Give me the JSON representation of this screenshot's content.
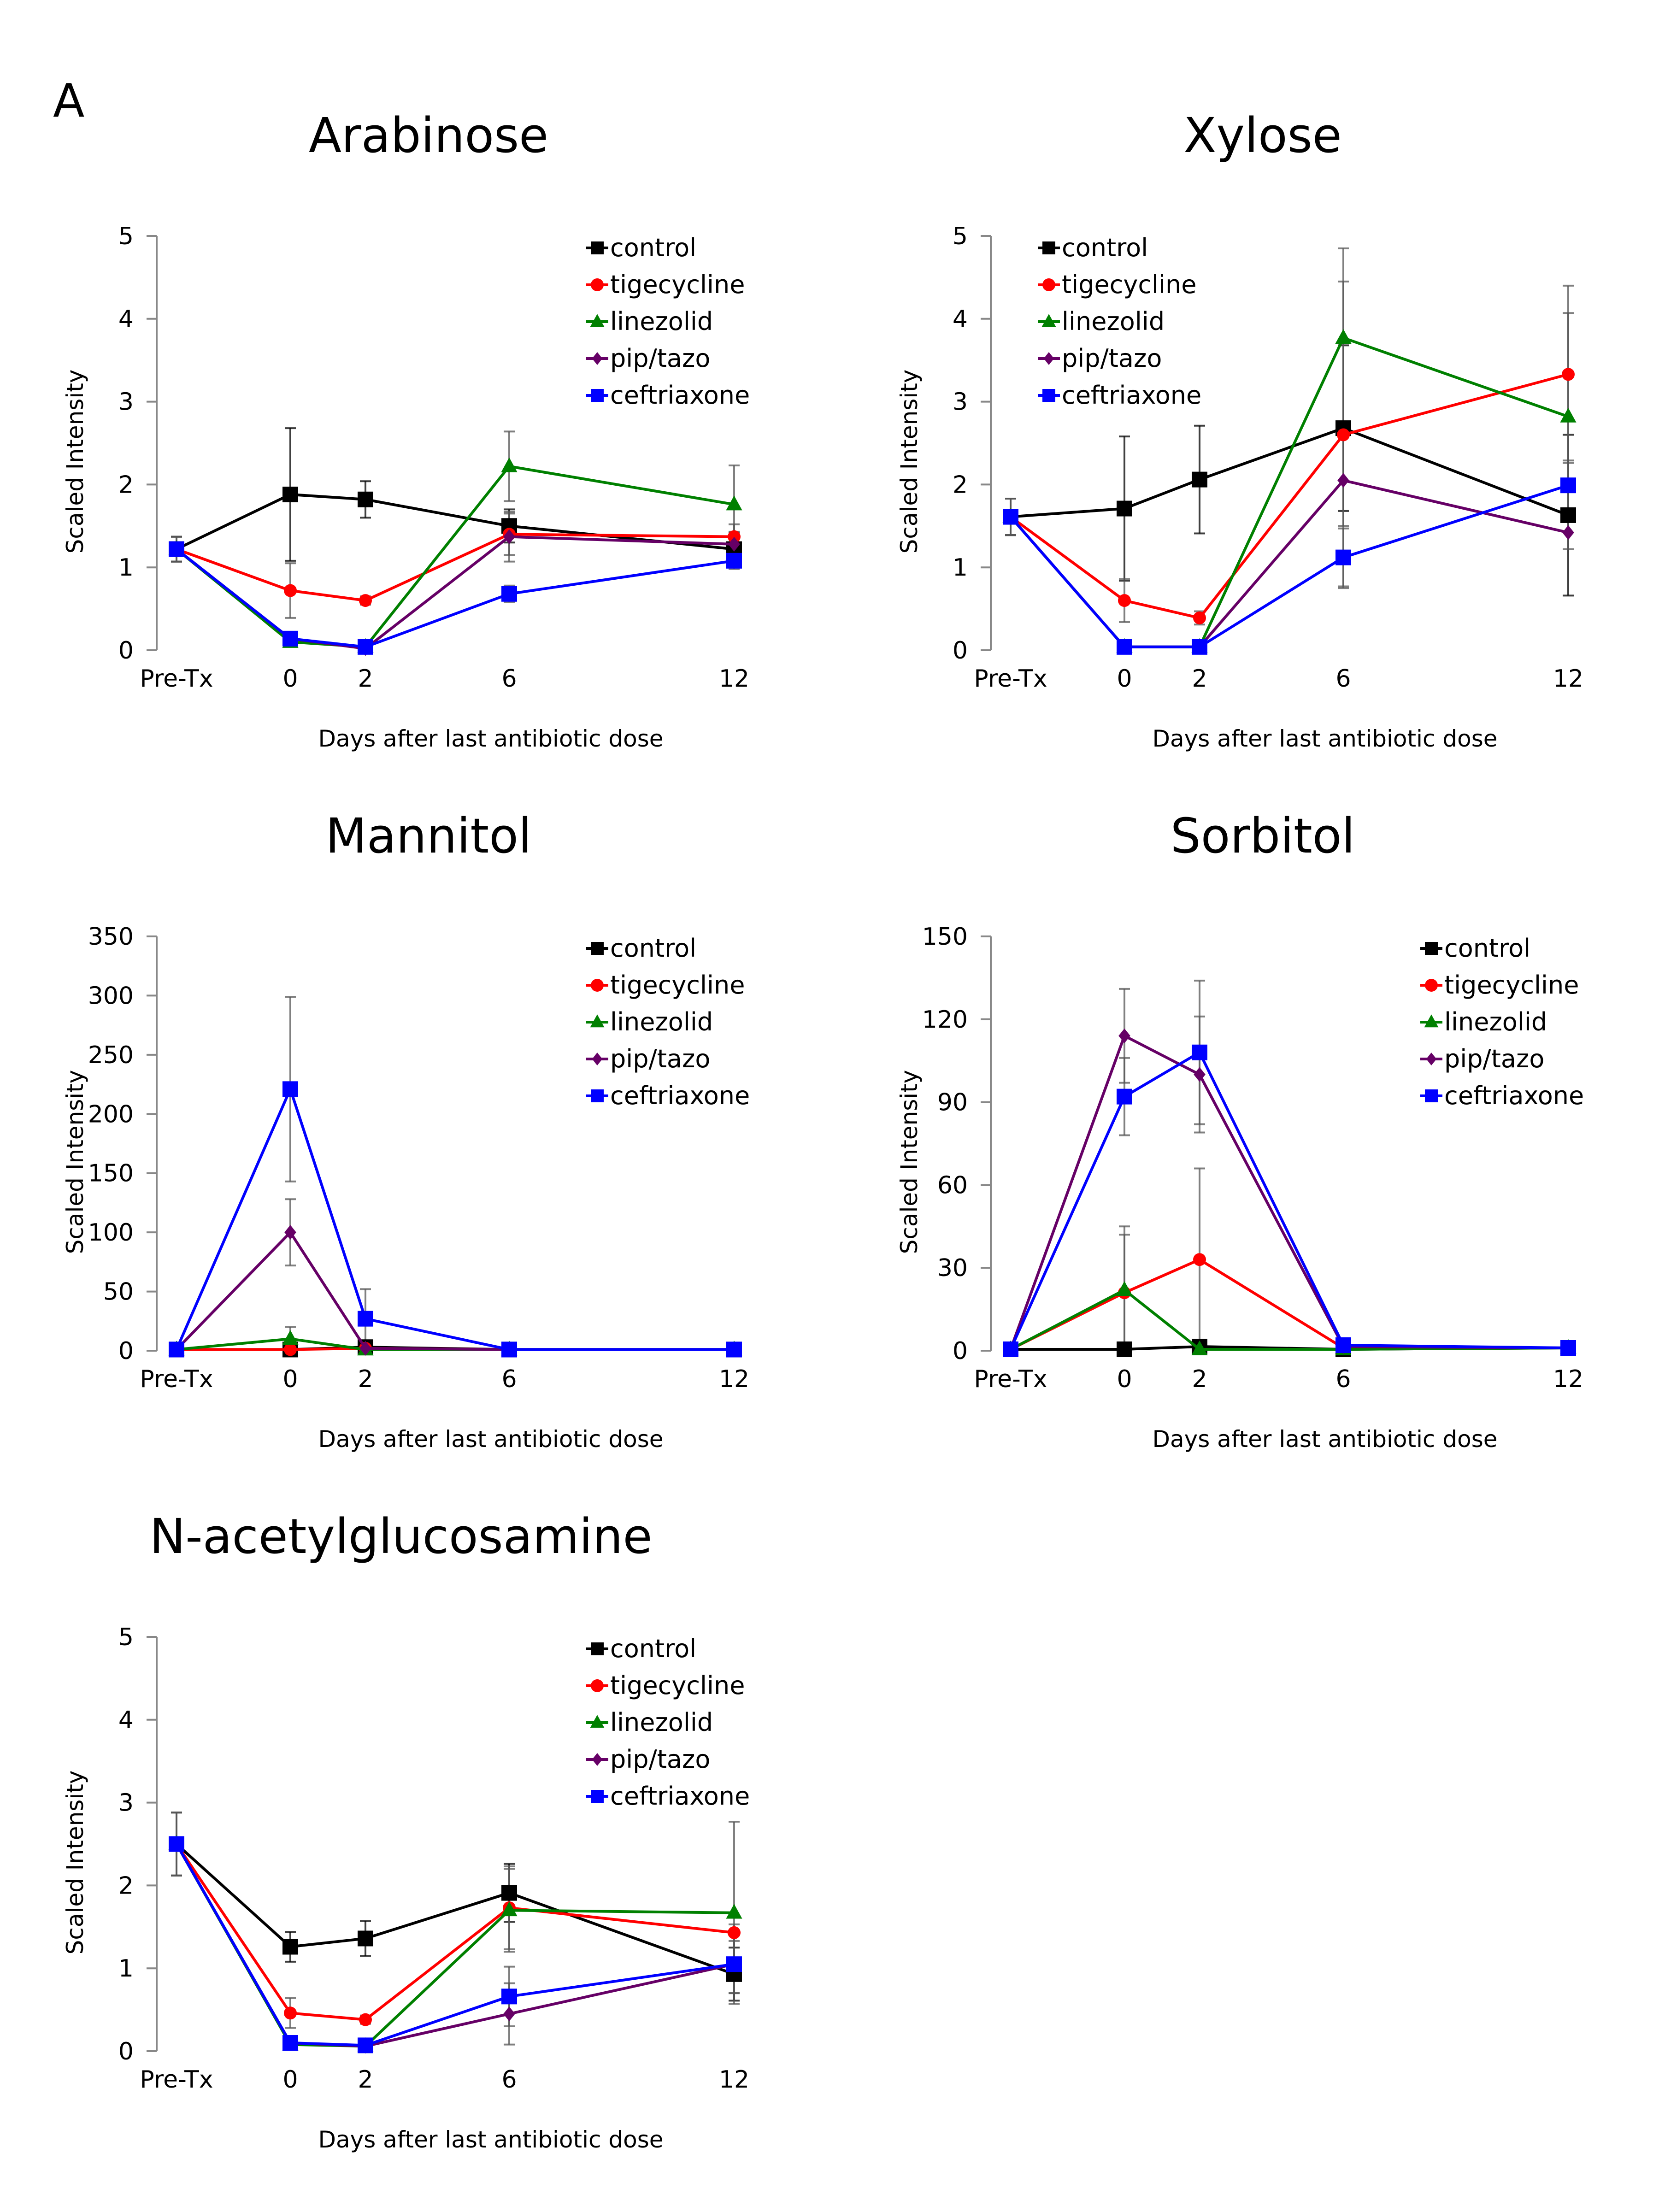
{
  "figure_label": "A",
  "chart_data": [
    {
      "type": "line",
      "title": "Arabinose",
      "xlabel": "Days after last antibiotic dose",
      "ylabel": "Scaled Intensity",
      "categories": [
        "Pre-Tx",
        "0",
        "2",
        "6",
        "12"
      ],
      "x": [
        -3,
        0,
        2,
        6,
        12
      ],
      "ylim": [
        0,
        5
      ],
      "yticks": [
        0,
        1,
        2,
        3,
        4,
        5
      ],
      "legend": "top-right",
      "grid": false,
      "series": [
        {
          "name": "control",
          "color": "#000000",
          "marker": "square",
          "values": [
            1.22,
            1.88,
            1.82,
            1.5,
            1.22
          ],
          "err": [
            0.15,
            0.8,
            0.22,
            0.2,
            0.2
          ]
        },
        {
          "name": "tigecycline",
          "color": "#ff0000",
          "marker": "circle",
          "values": [
            1.22,
            0.72,
            0.6,
            1.4,
            1.37
          ],
          "err": [
            0.15,
            0.33,
            0.05,
            0.25,
            0.15
          ]
        },
        {
          "name": "linezolid",
          "color": "#008000",
          "marker": "triangle",
          "values": [
            1.22,
            0.1,
            0.04,
            2.22,
            1.76
          ],
          "err": [
            0.15,
            0.05,
            0.02,
            0.42,
            0.47
          ]
        },
        {
          "name": "pip/tazo",
          "color": "#660066",
          "marker": "diamond",
          "values": [
            1.22,
            0.14,
            0.02,
            1.37,
            1.28
          ],
          "err": [
            0.15,
            0.05,
            0.02,
            0.3,
            0.15
          ]
        },
        {
          "name": "ceftriaxone",
          "color": "#0000ff",
          "marker": "square",
          "values": [
            1.22,
            0.14,
            0.04,
            0.68,
            1.08
          ],
          "err": [
            0.15,
            0.05,
            0.02,
            0.1,
            0.1
          ]
        }
      ]
    },
    {
      "type": "line",
      "title": "Xylose",
      "xlabel": "Days after last antibiotic dose",
      "ylabel": "Scaled Intensity",
      "categories": [
        "Pre-Tx",
        "0",
        "2",
        "6",
        "12"
      ],
      "x": [
        -3,
        0,
        2,
        6,
        12
      ],
      "ylim": [
        0,
        5
      ],
      "yticks": [
        0,
        1,
        2,
        3,
        4,
        5
      ],
      "legend": "top-left",
      "grid": false,
      "series": [
        {
          "name": "control",
          "color": "#000000",
          "marker": "square",
          "values": [
            1.61,
            1.71,
            2.06,
            2.68,
            1.63
          ],
          "err": [
            0.22,
            0.87,
            0.65,
            1.0,
            0.97
          ]
        },
        {
          "name": "tigecycline",
          "color": "#ff0000",
          "marker": "circle",
          "values": [
            1.61,
            0.6,
            0.39,
            2.6,
            3.33
          ],
          "err": [
            0.22,
            0.26,
            0.08,
            1.85,
            1.07
          ]
        },
        {
          "name": "linezolid",
          "color": "#008000",
          "marker": "triangle",
          "values": [
            1.61,
            0.04,
            0.04,
            3.77,
            2.82
          ],
          "err": [
            0.22,
            0.02,
            0.02,
            1.08,
            1.25
          ]
        },
        {
          "name": "pip/tazo",
          "color": "#660066",
          "marker": "diamond",
          "values": [
            1.61,
            0.04,
            0.04,
            2.05,
            1.42
          ],
          "err": [
            0.22,
            0.02,
            0.02,
            0.55,
            0.2
          ]
        },
        {
          "name": "ceftriaxone",
          "color": "#0000ff",
          "marker": "square",
          "values": [
            1.61,
            0.04,
            0.04,
            1.12,
            1.99
          ],
          "err": [
            0.22,
            0.02,
            0.02,
            0.35,
            0.3
          ]
        }
      ]
    },
    {
      "type": "line",
      "title": "Mannitol",
      "xlabel": "Days after last antibiotic dose",
      "ylabel": "Scaled Intensity",
      "categories": [
        "Pre-Tx",
        "0",
        "2",
        "6",
        "12"
      ],
      "x": [
        -3,
        0,
        2,
        6,
        12
      ],
      "ylim": [
        0,
        350
      ],
      "yticks": [
        0,
        50,
        100,
        150,
        200,
        250,
        300,
        350
      ],
      "legend": "top-right",
      "grid": false,
      "series": [
        {
          "name": "control",
          "color": "#000000",
          "marker": "square",
          "values": [
            1,
            1,
            3,
            1,
            1
          ],
          "err": [
            0,
            0,
            2,
            0,
            0
          ]
        },
        {
          "name": "tigecycline",
          "color": "#ff0000",
          "marker": "circle",
          "values": [
            1,
            1,
            2,
            1,
            1
          ],
          "err": [
            0,
            0,
            0,
            0,
            0
          ]
        },
        {
          "name": "linezolid",
          "color": "#008000",
          "marker": "triangle",
          "values": [
            1,
            10,
            1,
            1,
            1
          ],
          "err": [
            0,
            10,
            0,
            0,
            0
          ]
        },
        {
          "name": "pip/tazo",
          "color": "#660066",
          "marker": "diamond",
          "values": [
            1,
            100,
            2,
            1,
            1
          ],
          "err": [
            0,
            28,
            0,
            0,
            0
          ]
        },
        {
          "name": "ceftriaxone",
          "color": "#0000ff",
          "marker": "square",
          "values": [
            1,
            221,
            27,
            1,
            1
          ],
          "err": [
            0,
            78,
            25,
            0,
            0
          ]
        }
      ]
    },
    {
      "type": "line",
      "title": "Sorbitol",
      "xlabel": "Days after last antibiotic dose",
      "ylabel": "Scaled Intensity",
      "categories": [
        "Pre-Tx",
        "0",
        "2",
        "6",
        "12"
      ],
      "x": [
        -3,
        0,
        2,
        6,
        12
      ],
      "ylim": [
        0,
        150
      ],
      "yticks": [
        0,
        30,
        60,
        90,
        120,
        150
      ],
      "legend": "top-right",
      "grid": false,
      "series": [
        {
          "name": "control",
          "color": "#000000",
          "marker": "square",
          "values": [
            0.5,
            0.5,
            1.5,
            0.5,
            1
          ],
          "err": [
            0,
            0,
            0,
            0,
            0
          ]
        },
        {
          "name": "tigecycline",
          "color": "#ff0000",
          "marker": "circle",
          "values": [
            0.5,
            21,
            33,
            1,
            1
          ],
          "err": [
            0,
            21,
            33,
            0,
            0
          ]
        },
        {
          "name": "linezolid",
          "color": "#008000",
          "marker": "triangle",
          "values": [
            0.5,
            22,
            0.5,
            0.5,
            1
          ],
          "err": [
            0,
            23,
            0,
            0,
            0
          ]
        },
        {
          "name": "pip/tazo",
          "color": "#660066",
          "marker": "diamond",
          "values": [
            0.5,
            114,
            100,
            1.5,
            1
          ],
          "err": [
            0,
            17,
            21,
            0,
            0
          ]
        },
        {
          "name": "ceftriaxone",
          "color": "#0000ff",
          "marker": "square",
          "values": [
            0.5,
            92,
            108,
            2,
            1
          ],
          "err": [
            0,
            14,
            26,
            0,
            0
          ]
        }
      ]
    },
    {
      "type": "line",
      "title": "N-acetylglucosamine",
      "xlabel": "Days after last antibiotic dose",
      "ylabel": "Scaled Intensity",
      "categories": [
        "Pre-Tx",
        "0",
        "2",
        "6",
        "12"
      ],
      "x": [
        -3,
        0,
        2,
        6,
        12
      ],
      "ylim": [
        0,
        5
      ],
      "yticks": [
        0,
        1,
        2,
        3,
        4,
        5
      ],
      "legend": "top-right",
      "grid": false,
      "series": [
        {
          "name": "control",
          "color": "#000000",
          "marker": "square",
          "values": [
            2.5,
            1.26,
            1.36,
            1.91,
            0.93
          ],
          "err": [
            0.38,
            0.18,
            0.21,
            0.35,
            0.32
          ]
        },
        {
          "name": "tigecycline",
          "color": "#ff0000",
          "marker": "circle",
          "values": [
            2.5,
            0.46,
            0.38,
            1.73,
            1.43
          ],
          "err": [
            0.38,
            0.18,
            0.05,
            0.5,
            0.1
          ]
        },
        {
          "name": "linezolid",
          "color": "#008000",
          "marker": "triangle",
          "values": [
            2.5,
            0.08,
            0.06,
            1.7,
            1.67
          ],
          "err": [
            0.38,
            0.03,
            0.02,
            0.5,
            1.1
          ]
        },
        {
          "name": "pip/tazo",
          "color": "#660066",
          "marker": "diamond",
          "values": [
            2.5,
            0.1,
            0.06,
            0.45,
            1.05
          ],
          "err": [
            0.38,
            0.03,
            0.02,
            0.37,
            0.35
          ]
        },
        {
          "name": "ceftriaxone",
          "color": "#0000ff",
          "marker": "square",
          "values": [
            2.5,
            0.1,
            0.07,
            0.66,
            1.05
          ],
          "err": [
            0.38,
            0.03,
            0.02,
            0.36,
            0.35
          ]
        }
      ]
    }
  ]
}
